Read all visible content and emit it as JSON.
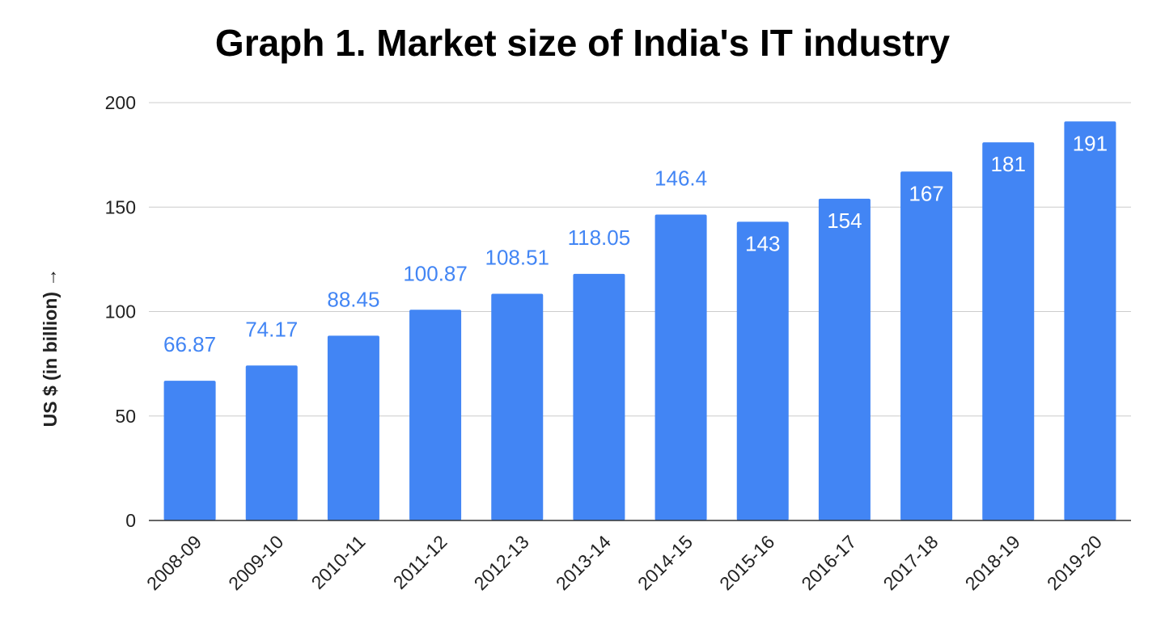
{
  "chart_data": {
    "type": "bar",
    "title": "Graph 1. Market size of India's IT industry",
    "xlabel": "",
    "ylabel": "US $ (in billion) →",
    "ylim": [
      0,
      200
    ],
    "yticks": [
      "0",
      "50",
      "100",
      "150",
      "200"
    ],
    "grid": true,
    "legend": "none",
    "categories": [
      "2008-09",
      "2009-10",
      "2010-11",
      "2011-12",
      "2012-13",
      "2013-14",
      "2014-15",
      "2015-16",
      "2016-17",
      "2017-18",
      "2018-19",
      "2019-20"
    ],
    "values": [
      66.87,
      74.17,
      88.45,
      100.87,
      108.51,
      118.05,
      146.4,
      143,
      154,
      167,
      181,
      191
    ],
    "data_labels": [
      "66.87",
      "74.17",
      "88.45",
      "100.87",
      "108.51",
      "118.05",
      "146.4",
      "143",
      "154",
      "167",
      "181",
      "191"
    ],
    "label_position": [
      "outside",
      "outside",
      "outside",
      "outside",
      "outside",
      "outside",
      "outside",
      "inside",
      "inside",
      "inside",
      "inside",
      "inside"
    ],
    "colors": {
      "bar": "#4285f4",
      "label_outside": "#4285f4",
      "label_inside": "#ffffff",
      "grid": "#cccccc",
      "axis": "#333333"
    }
  }
}
